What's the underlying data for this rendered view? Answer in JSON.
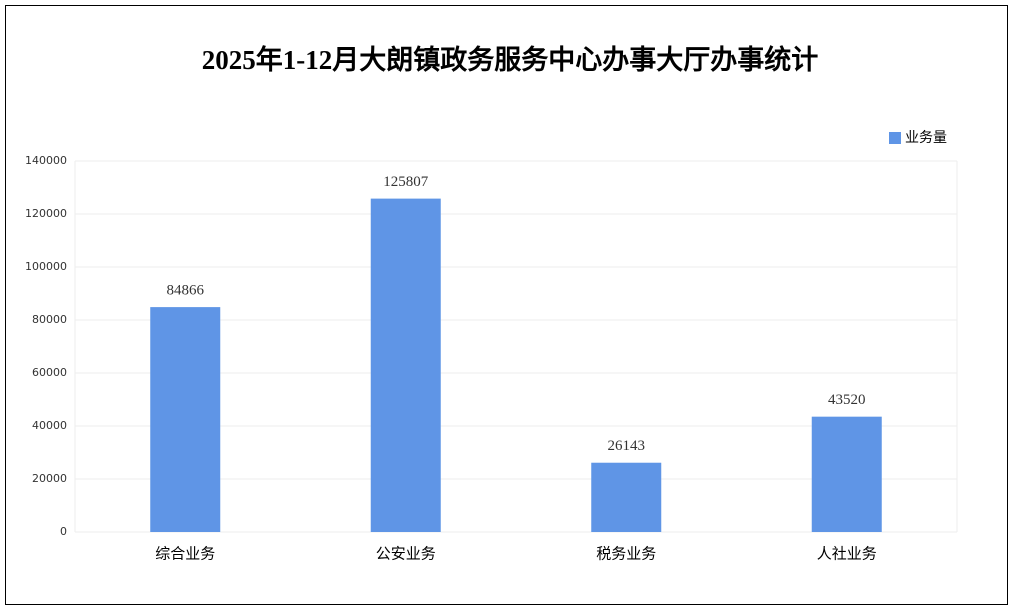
{
  "chart_data": {
    "type": "bar",
    "title": "2025年1-12月大朗镇政务服务中心办事大厅办事统计",
    "categories": [
      "综合业务",
      "公安业务",
      "税务业务",
      "人社业务"
    ],
    "series": [
      {
        "name": "业务量",
        "color": "#5f95e6",
        "values": [
          84866,
          125807,
          26143,
          43520
        ]
      }
    ],
    "ylim": [
      0,
      140000
    ],
    "yticks": [
      0,
      20000,
      40000,
      60000,
      80000,
      100000,
      120000,
      140000
    ],
    "grid": true,
    "legend": "top-right",
    "data_labels": true
  }
}
